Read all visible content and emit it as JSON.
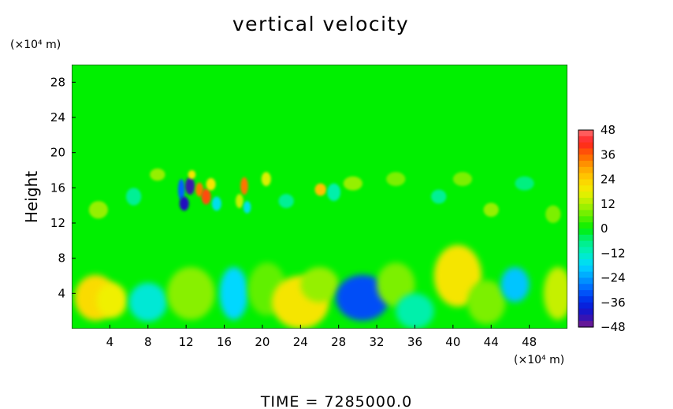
{
  "chart_data": {
    "type": "heatmap",
    "title": "vertical velocity",
    "ylabel": "Height",
    "xlabel": "",
    "x_unit_label": "(×10⁴ m)",
    "y_unit_label": "(×10⁴ m)",
    "xlim": [
      0,
      52
    ],
    "ylim": [
      0,
      30
    ],
    "x_ticks": [
      4,
      8,
      12,
      16,
      20,
      24,
      28,
      32,
      36,
      40,
      44,
      48
    ],
    "y_ticks": [
      4,
      8,
      12,
      16,
      20,
      24,
      28
    ],
    "colorbar": {
      "ticks": [
        48,
        36,
        24,
        12,
        0,
        -12,
        -24,
        -36,
        -48
      ],
      "range": [
        -48,
        48
      ]
    },
    "background_value": 0,
    "features": [
      {
        "x": 2.5,
        "y": 3.5,
        "rx": 2.2,
        "ry": 2.6,
        "value": 22
      },
      {
        "x": 4.2,
        "y": 3.2,
        "rx": 1.6,
        "ry": 2.0,
        "value": 18
      },
      {
        "x": 8.0,
        "y": 3.0,
        "rx": 2.0,
        "ry": 2.2,
        "value": -14
      },
      {
        "x": 12.5,
        "y": 4.0,
        "rx": 2.5,
        "ry": 3.0,
        "value": 9
      },
      {
        "x": 17.0,
        "y": 4.0,
        "rx": 1.5,
        "ry": 3.0,
        "value": -18
      },
      {
        "x": 20.5,
        "y": 4.5,
        "rx": 2.0,
        "ry": 3.0,
        "value": 6
      },
      {
        "x": 24.0,
        "y": 3.0,
        "rx": 3.0,
        "ry": 3.0,
        "value": 20
      },
      {
        "x": 26.0,
        "y": 5.0,
        "rx": 2.0,
        "ry": 2.0,
        "value": 10
      },
      {
        "x": 30.5,
        "y": 3.5,
        "rx": 2.8,
        "ry": 2.6,
        "value": -32
      },
      {
        "x": 34.0,
        "y": 5.0,
        "rx": 2.0,
        "ry": 2.5,
        "value": 8
      },
      {
        "x": 36.0,
        "y": 2.0,
        "rx": 2.0,
        "ry": 2.0,
        "value": -10
      },
      {
        "x": 40.5,
        "y": 6.0,
        "rx": 2.5,
        "ry": 3.5,
        "value": 20
      },
      {
        "x": 43.5,
        "y": 3.0,
        "rx": 2.0,
        "ry": 2.5,
        "value": 8
      },
      {
        "x": 46.5,
        "y": 5.0,
        "rx": 1.5,
        "ry": 2.0,
        "value": -20
      },
      {
        "x": 51.0,
        "y": 4.0,
        "rx": 1.5,
        "ry": 3.0,
        "value": 14
      },
      {
        "x": 11.5,
        "y": 15.8,
        "rx": 0.35,
        "ry": 1.2,
        "value": -30
      },
      {
        "x": 12.4,
        "y": 16.2,
        "rx": 0.5,
        "ry": 1.0,
        "value": -44
      },
      {
        "x": 11.8,
        "y": 14.2,
        "rx": 0.5,
        "ry": 0.8,
        "value": -42
      },
      {
        "x": 13.4,
        "y": 15.8,
        "rx": 0.4,
        "ry": 0.8,
        "value": 34
      },
      {
        "x": 14.1,
        "y": 15.0,
        "rx": 0.5,
        "ry": 0.9,
        "value": 38
      },
      {
        "x": 12.6,
        "y": 17.5,
        "rx": 0.4,
        "ry": 0.5,
        "value": 20
      },
      {
        "x": 14.6,
        "y": 16.4,
        "rx": 0.5,
        "ry": 0.7,
        "value": 20
      },
      {
        "x": 15.2,
        "y": 14.2,
        "rx": 0.5,
        "ry": 0.8,
        "value": -16
      },
      {
        "x": 18.1,
        "y": 16.2,
        "rx": 0.4,
        "ry": 1.0,
        "value": 34
      },
      {
        "x": 17.6,
        "y": 14.5,
        "rx": 0.4,
        "ry": 0.8,
        "value": 14
      },
      {
        "x": 18.4,
        "y": 13.8,
        "rx": 0.4,
        "ry": 0.7,
        "value": -16
      },
      {
        "x": 20.4,
        "y": 17.0,
        "rx": 0.5,
        "ry": 0.8,
        "value": 16
      },
      {
        "x": 26.1,
        "y": 15.8,
        "rx": 0.6,
        "ry": 0.7,
        "value": 26
      },
      {
        "x": 27.5,
        "y": 15.5,
        "rx": 0.7,
        "ry": 1.0,
        "value": -10
      },
      {
        "x": 29.5,
        "y": 16.5,
        "rx": 1.0,
        "ry": 0.8,
        "value": 10
      },
      {
        "x": 2.8,
        "y": 13.5,
        "rx": 1.0,
        "ry": 1.0,
        "value": 10
      },
      {
        "x": 6.5,
        "y": 15.0,
        "rx": 0.8,
        "ry": 1.0,
        "value": -8
      },
      {
        "x": 9.0,
        "y": 17.5,
        "rx": 0.8,
        "ry": 0.7,
        "value": 10
      },
      {
        "x": 22.5,
        "y": 14.5,
        "rx": 0.8,
        "ry": 0.8,
        "value": -8
      },
      {
        "x": 34.0,
        "y": 17.0,
        "rx": 1.0,
        "ry": 0.8,
        "value": 8
      },
      {
        "x": 38.5,
        "y": 15.0,
        "rx": 0.8,
        "ry": 0.8,
        "value": -8
      },
      {
        "x": 41.0,
        "y": 17.0,
        "rx": 1.0,
        "ry": 0.8,
        "value": 8
      },
      {
        "x": 44.0,
        "y": 13.5,
        "rx": 0.8,
        "ry": 0.8,
        "value": 10
      },
      {
        "x": 47.5,
        "y": 16.5,
        "rx": 1.0,
        "ry": 0.8,
        "value": -6
      },
      {
        "x": 50.5,
        "y": 13.0,
        "rx": 0.8,
        "ry": 1.0,
        "value": 8
      }
    ],
    "grid": false,
    "legend_position": "right colorbar"
  },
  "footer": {
    "time_text": "TIME  =  7285000.0"
  }
}
